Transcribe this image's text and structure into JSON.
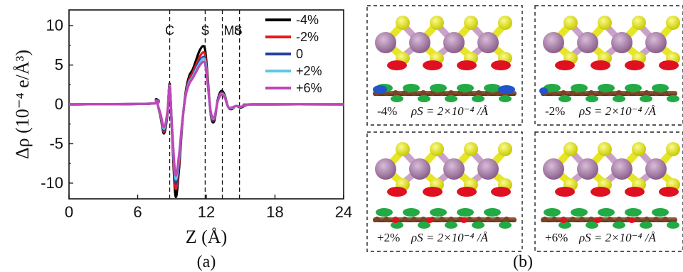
{
  "chart_data": {
    "type": "line",
    "xlabel": "Z (Å)",
    "ylabel": "Δρ (10⁻⁴ e/Å³)",
    "xlim": [
      0,
      24
    ],
    "ylim": [
      -12,
      12
    ],
    "x_ticks": [
      "0",
      "6",
      "12",
      "18",
      "24"
    ],
    "y_ticks": [
      "10",
      "5",
      "0",
      "-5",
      "-10"
    ],
    "markers": [
      {
        "label": "C",
        "z": 8.8
      },
      {
        "label": "S",
        "z": 11.9
      },
      {
        "label": "Mo",
        "z": 13.4
      },
      {
        "label": "S",
        "z": 14.9
      }
    ],
    "legend_position": "top-right",
    "series": [
      {
        "name": "-4%",
        "color": "#000000",
        "x": [
          0,
          7.2,
          7.6,
          8.0,
          8.3,
          8.6,
          8.8,
          9.0,
          9.3,
          9.6,
          9.9,
          10.2,
          10.5,
          10.8,
          11.1,
          11.4,
          11.7,
          11.9,
          12.1,
          12.4,
          12.7,
          13.0,
          13.3,
          13.6,
          13.9,
          14.2,
          14.6,
          15.0,
          15.5,
          16.0,
          24
        ],
        "y": [
          0,
          0.1,
          0.6,
          -1.6,
          -3.7,
          -1.3,
          2.6,
          -3.5,
          -11.6,
          -8.5,
          -2.5,
          1.6,
          3.6,
          4.4,
          5.6,
          6.8,
          7.4,
          6.9,
          3.8,
          -1.4,
          -2.1,
          0.6,
          1.7,
          1.2,
          -0.3,
          -0.6,
          -0.2,
          -0.4,
          -0.1,
          0,
          0
        ]
      },
      {
        "name": "-2%",
        "color": "#e8191e",
        "x": [
          0,
          7.2,
          7.6,
          8.0,
          8.3,
          8.6,
          8.8,
          9.0,
          9.3,
          9.6,
          9.9,
          10.2,
          10.5,
          10.8,
          11.1,
          11.4,
          11.7,
          11.9,
          12.1,
          12.4,
          12.7,
          13.0,
          13.3,
          13.6,
          13.9,
          14.2,
          14.6,
          15.0,
          15.5,
          16.0,
          24
        ],
        "y": [
          0,
          0.1,
          0.5,
          -1.5,
          -3.5,
          -1.2,
          2.5,
          -3.2,
          -10.6,
          -7.9,
          -2.4,
          1.4,
          3.2,
          4.0,
          5.0,
          6.0,
          6.6,
          6.2,
          3.4,
          -1.3,
          -1.9,
          0.5,
          1.5,
          1.1,
          -0.3,
          -0.5,
          -0.2,
          -0.3,
          -0.1,
          0,
          0
        ]
      },
      {
        "name": "0",
        "color": "#2340a0",
        "x": [
          0,
          7.2,
          7.6,
          8.0,
          8.3,
          8.6,
          8.8,
          9.0,
          9.3,
          9.6,
          9.9,
          10.2,
          10.5,
          10.8,
          11.1,
          11.4,
          11.7,
          11.9,
          12.1,
          12.4,
          12.7,
          13.0,
          13.3,
          13.6,
          13.9,
          14.2,
          14.6,
          15.0,
          15.5,
          16.0,
          24
        ],
        "y": [
          0,
          0.1,
          0.5,
          -1.4,
          -3.3,
          -1.1,
          2.4,
          -3.0,
          -9.9,
          -7.4,
          -2.3,
          1.3,
          2.9,
          3.6,
          4.6,
          5.5,
          6.0,
          5.7,
          3.1,
          -1.2,
          -1.8,
          0.5,
          1.4,
          1.0,
          -0.3,
          -0.5,
          -0.2,
          -0.3,
          -0.1,
          0,
          0
        ]
      },
      {
        "name": "+2%",
        "color": "#5fc6e0",
        "x": [
          0,
          7.2,
          7.6,
          8.0,
          8.3,
          8.6,
          8.8,
          9.0,
          9.3,
          9.6,
          9.9,
          10.2,
          10.5,
          10.8,
          11.1,
          11.4,
          11.7,
          11.9,
          12.1,
          12.4,
          12.7,
          13.0,
          13.3,
          13.6,
          13.9,
          14.2,
          14.6,
          15.0,
          15.5,
          16.0,
          24
        ],
        "y": [
          0,
          0.1,
          0.4,
          -1.3,
          -3.1,
          -1.0,
          2.3,
          -2.9,
          -9.4,
          -7.0,
          -2.2,
          1.2,
          2.8,
          3.5,
          4.4,
          5.2,
          5.8,
          5.5,
          3.0,
          -1.1,
          -1.7,
          0.4,
          1.3,
          1.0,
          -0.3,
          -0.5,
          -0.2,
          -0.3,
          -0.1,
          0,
          0
        ]
      },
      {
        "name": "+6%",
        "color": "#c046b8",
        "x": [
          0,
          7.2,
          7.6,
          8.0,
          8.3,
          8.6,
          8.8,
          9.0,
          9.3,
          9.6,
          9.9,
          10.2,
          10.5,
          10.8,
          11.1,
          11.4,
          11.7,
          11.9,
          12.1,
          12.4,
          12.7,
          13.0,
          13.3,
          13.6,
          13.9,
          14.2,
          14.6,
          15.0,
          15.5,
          16.0,
          24
        ],
        "y": [
          0,
          0.1,
          0.4,
          -1.2,
          -2.9,
          -0.9,
          2.2,
          -2.7,
          -8.9,
          -6.6,
          -2.1,
          1.1,
          2.6,
          3.3,
          4.1,
          4.9,
          5.4,
          5.1,
          2.8,
          -1.0,
          -1.6,
          0.4,
          1.2,
          0.9,
          -0.3,
          -0.4,
          -0.2,
          -0.3,
          -0.1,
          0,
          0
        ]
      }
    ]
  },
  "captions": {
    "a": "(a)",
    "b": "(b)"
  },
  "panels_b": [
    {
      "strain": "-4%",
      "density": "ρS = 2×10⁻⁴ /Å"
    },
    {
      "strain": "-2%",
      "density": "ρS = 2×10⁻⁴ /Å"
    },
    {
      "strain": "+2%",
      "density": "ρS = 2×10⁻⁴ /Å"
    },
    {
      "strain": "+6%",
      "density": "ρS = 2×10⁻⁴ /Å"
    }
  ],
  "colors": {
    "mo_atom": "#a981a9",
    "s_atom": "#e6e622",
    "c_atom": "#7a4422",
    "charge_accumulation": "#e01020",
    "charge_depletion": "#22aa44",
    "depletion_blue": "#2255cc"
  }
}
